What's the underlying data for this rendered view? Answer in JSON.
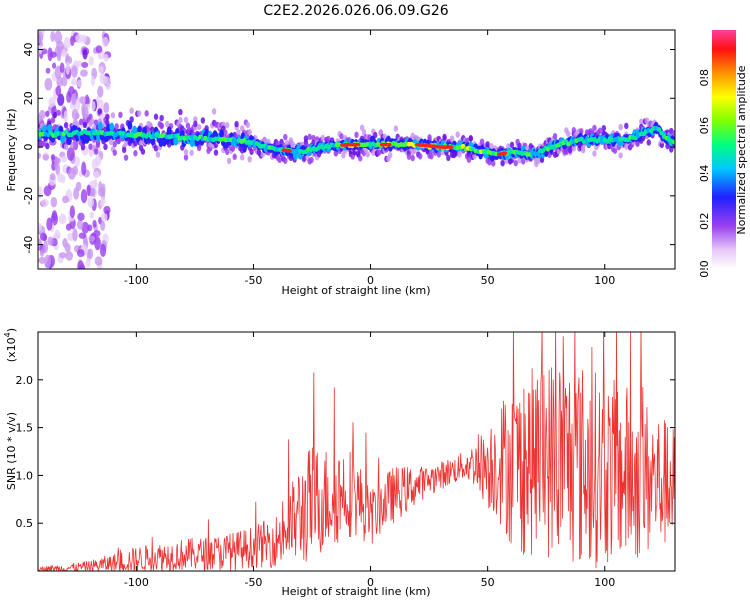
{
  "title": "C2E2.2026.026.06.09.G26",
  "chart_data": [
    {
      "type": "heatmap",
      "name": "spectrogram",
      "xlabel": "Height of straight line (km)",
      "ylabel": "Frequency (Hz)",
      "xlim": [
        -142,
        130
      ],
      "ylim": [
        -50,
        48
      ],
      "xticks": [
        -100,
        -50,
        0,
        50,
        100
      ],
      "yticks": [
        -40,
        -20,
        0,
        20,
        40
      ],
      "xtick_labels": [
        "-100",
        "-50",
        "0",
        "50",
        "100"
      ],
      "ytick_labels": [
        "-40",
        "-20",
        "0",
        "20",
        "40"
      ],
      "centerline": [
        [
          -142,
          5
        ],
        [
          -120,
          6
        ],
        [
          -100,
          5
        ],
        [
          -80,
          4
        ],
        [
          -60,
          3
        ],
        [
          -52,
          2
        ],
        [
          -40,
          -1
        ],
        [
          -30,
          -2
        ],
        [
          -20,
          0
        ],
        [
          -10,
          1
        ],
        [
          0,
          1
        ],
        [
          10,
          1
        ],
        [
          20,
          1
        ],
        [
          30,
          0
        ],
        [
          40,
          0
        ],
        [
          48,
          -2
        ],
        [
          55,
          -3
        ],
        [
          60,
          -2
        ],
        [
          70,
          -3
        ],
        [
          80,
          1
        ],
        [
          90,
          3
        ],
        [
          100,
          3
        ],
        [
          110,
          3
        ],
        [
          118,
          6
        ],
        [
          122,
          8
        ],
        [
          126,
          4
        ],
        [
          130,
          2
        ]
      ],
      "colorbar": {
        "label": "Normalized spectral amplitude",
        "range": [
          0,
          1
        ],
        "ticks": [
          0.0,
          0.2,
          0.4,
          0.6,
          0.8
        ],
        "tick_labels": [
          "0.0",
          "0.2",
          "0.4",
          "0.6",
          "0.8"
        ]
      }
    },
    {
      "type": "line",
      "name": "snr",
      "xlabel": "Height of straight line (km)",
      "ylabel": "SNR (10 * v/v)",
      "scale_label": "(x10",
      "scale_exponent": "4",
      "scale_close": ")",
      "xlim": [
        -142,
        130
      ],
      "ylim": [
        0,
        2.5
      ],
      "xticks": [
        -100,
        -50,
        0,
        50,
        100
      ],
      "yticks": [
        0.5,
        1.0,
        1.5,
        2.0
      ],
      "xtick_labels": [
        "-100",
        "-50",
        "0",
        "50",
        "100"
      ],
      "ytick_labels": [
        "0.5",
        "1.0",
        "1.5",
        "2.0"
      ],
      "line_color": "#ee3333",
      "envelope": [
        [
          -142,
          0.02,
          0.03
        ],
        [
          -130,
          0.03,
          0.04
        ],
        [
          -120,
          0.05,
          0.06
        ],
        [
          -110,
          0.08,
          0.1
        ],
        [
          -100,
          0.12,
          0.14
        ],
        [
          -90,
          0.15,
          0.15
        ],
        [
          -80,
          0.17,
          0.17
        ],
        [
          -70,
          0.18,
          0.18
        ],
        [
          -60,
          0.2,
          0.2
        ],
        [
          -50,
          0.25,
          0.22
        ],
        [
          -40,
          0.32,
          0.28
        ],
        [
          -35,
          0.45,
          0.4
        ],
        [
          -30,
          0.6,
          0.55
        ],
        [
          -25,
          0.7,
          0.65
        ],
        [
          -20,
          0.75,
          0.55
        ],
        [
          -15,
          0.8,
          0.55
        ],
        [
          -10,
          0.85,
          0.5
        ],
        [
          -5,
          0.75,
          0.4
        ],
        [
          0,
          0.55,
          0.3
        ],
        [
          5,
          0.7,
          0.3
        ],
        [
          10,
          0.8,
          0.3
        ],
        [
          15,
          0.85,
          0.25
        ],
        [
          20,
          0.9,
          0.2
        ],
        [
          25,
          0.95,
          0.15
        ],
        [
          30,
          1.0,
          0.15
        ],
        [
          35,
          1.05,
          0.15
        ],
        [
          40,
          1.1,
          0.15
        ],
        [
          45,
          1.12,
          0.25
        ],
        [
          50,
          1.1,
          0.45
        ],
        [
          55,
          1.15,
          0.65
        ],
        [
          60,
          1.1,
          0.85
        ],
        [
          65,
          1.1,
          0.95
        ],
        [
          70,
          1.15,
          1.0
        ],
        [
          80,
          1.2,
          1.1
        ],
        [
          90,
          1.1,
          1.1
        ],
        [
          100,
          1.05,
          1.0
        ],
        [
          110,
          1.0,
          0.95
        ],
        [
          120,
          0.95,
          0.8
        ],
        [
          130,
          0.9,
          0.6
        ]
      ]
    }
  ]
}
